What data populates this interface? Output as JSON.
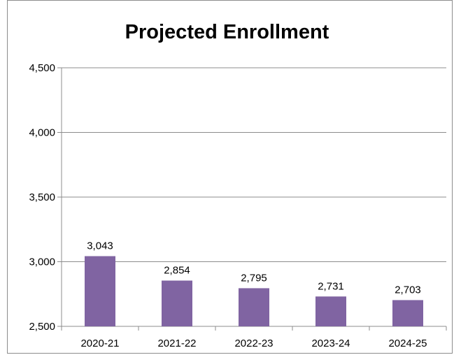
{
  "chart_data": {
    "type": "bar",
    "title": "Projected Enrollment",
    "categories": [
      "2020-21",
      "2021-22",
      "2022-23",
      "2023-24",
      "2024-25"
    ],
    "values": [
      3043,
      2854,
      2795,
      2731,
      2703
    ],
    "data_labels": [
      "3,043",
      "2,854",
      "2,795",
      "2,731",
      "2,703"
    ],
    "ylim": [
      2500,
      4500
    ],
    "y_ticks": [
      2500,
      3000,
      3500,
      4000,
      4500
    ],
    "y_tick_labels": [
      "2,500",
      "3,000",
      "3,500",
      "4,000",
      "4,500"
    ],
    "xlabel": "",
    "ylabel": "",
    "grid": true,
    "legend": "none",
    "colors": {
      "bar": "#8064a2",
      "grid": "#8c8c8c",
      "axis": "#8c8c8c",
      "border": "#8c8c8c"
    }
  }
}
